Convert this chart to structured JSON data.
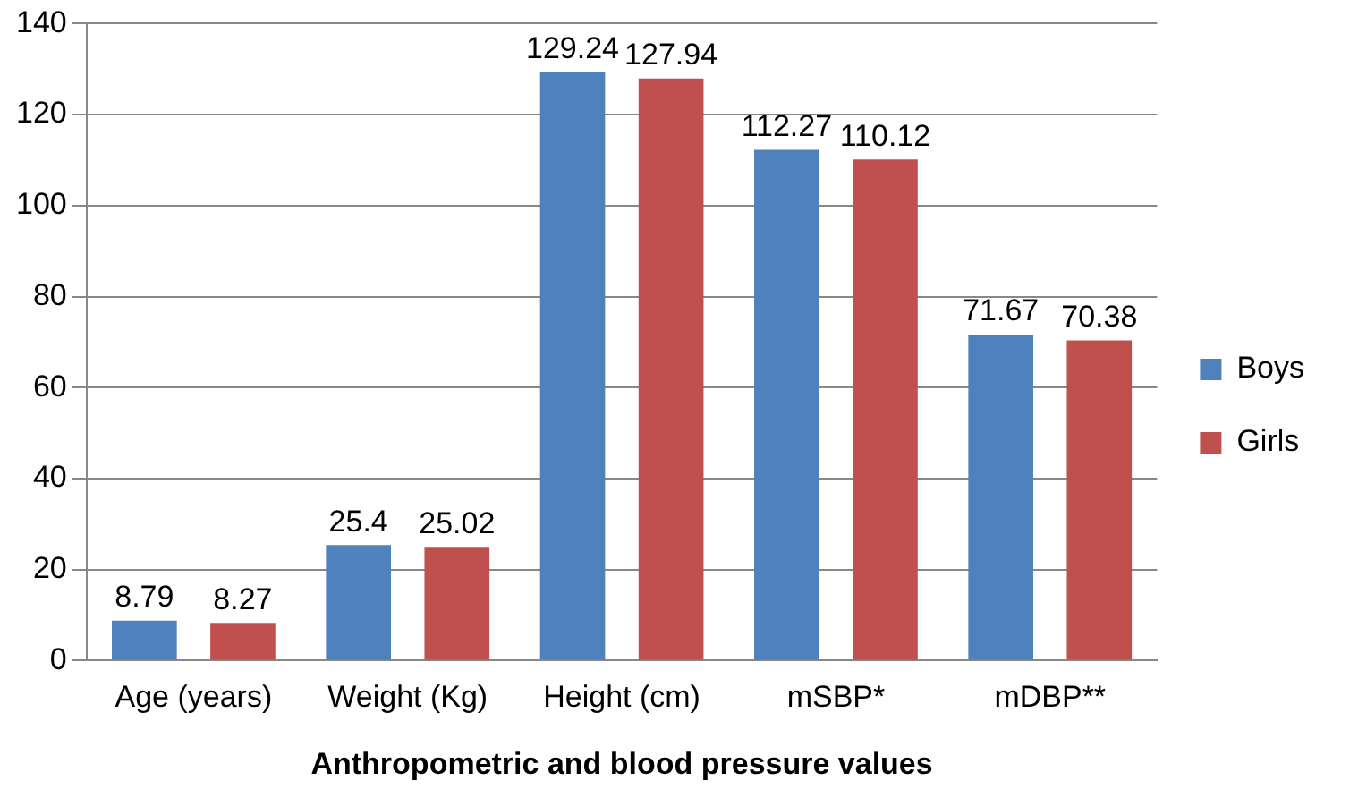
{
  "chart_data": {
    "type": "bar",
    "xlabel": "Anthropometric and blood pressure values",
    "categories": [
      "Age (years)",
      "Weight (Kg)",
      "Height (cm)",
      "mSBP*",
      "mDBP**"
    ],
    "series": [
      {
        "name": "Boys",
        "color": "#4f81bd",
        "values": [
          8.79,
          25.4,
          129.24,
          112.27,
          71.67
        ]
      },
      {
        "name": "Girls",
        "color": "#c0504d",
        "values": [
          8.27,
          25.02,
          127.94,
          110.12,
          70.38
        ]
      }
    ],
    "ylim": [
      0,
      140
    ],
    "yticks": [
      0,
      20,
      40,
      60,
      80,
      100,
      120,
      140
    ],
    "grid": "y",
    "legend": "right",
    "data_labels": true
  }
}
